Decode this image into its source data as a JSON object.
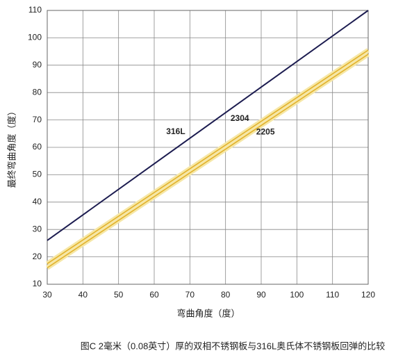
{
  "chart_data": {
    "type": "line",
    "x_label": "弯曲角度（度）",
    "y_label": "最终弯曲角度（度）",
    "caption": "图C 2毫米（0.08英寸）厚的双相不锈钢板与316L奥氏体不锈钢板回弹的比较",
    "x": [
      30,
      120
    ],
    "series": [
      {
        "name": "316L",
        "color": "#1c1c50",
        "values": [
          26,
          110
        ]
      },
      {
        "name": "2304",
        "color": "#e2b22c",
        "values": [
          17.5,
          95.5
        ]
      },
      {
        "name": "2205",
        "color": "#e2b22c",
        "values": [
          16,
          94
        ]
      }
    ],
    "xlim": [
      30,
      120
    ],
    "ylim": [
      10,
      110
    ],
    "xticks": [
      30,
      40,
      50,
      60,
      70,
      80,
      90,
      100,
      110,
      120
    ],
    "yticks": [
      10,
      20,
      30,
      40,
      50,
      60,
      70,
      80,
      90,
      100,
      110
    ],
    "grid": true
  }
}
